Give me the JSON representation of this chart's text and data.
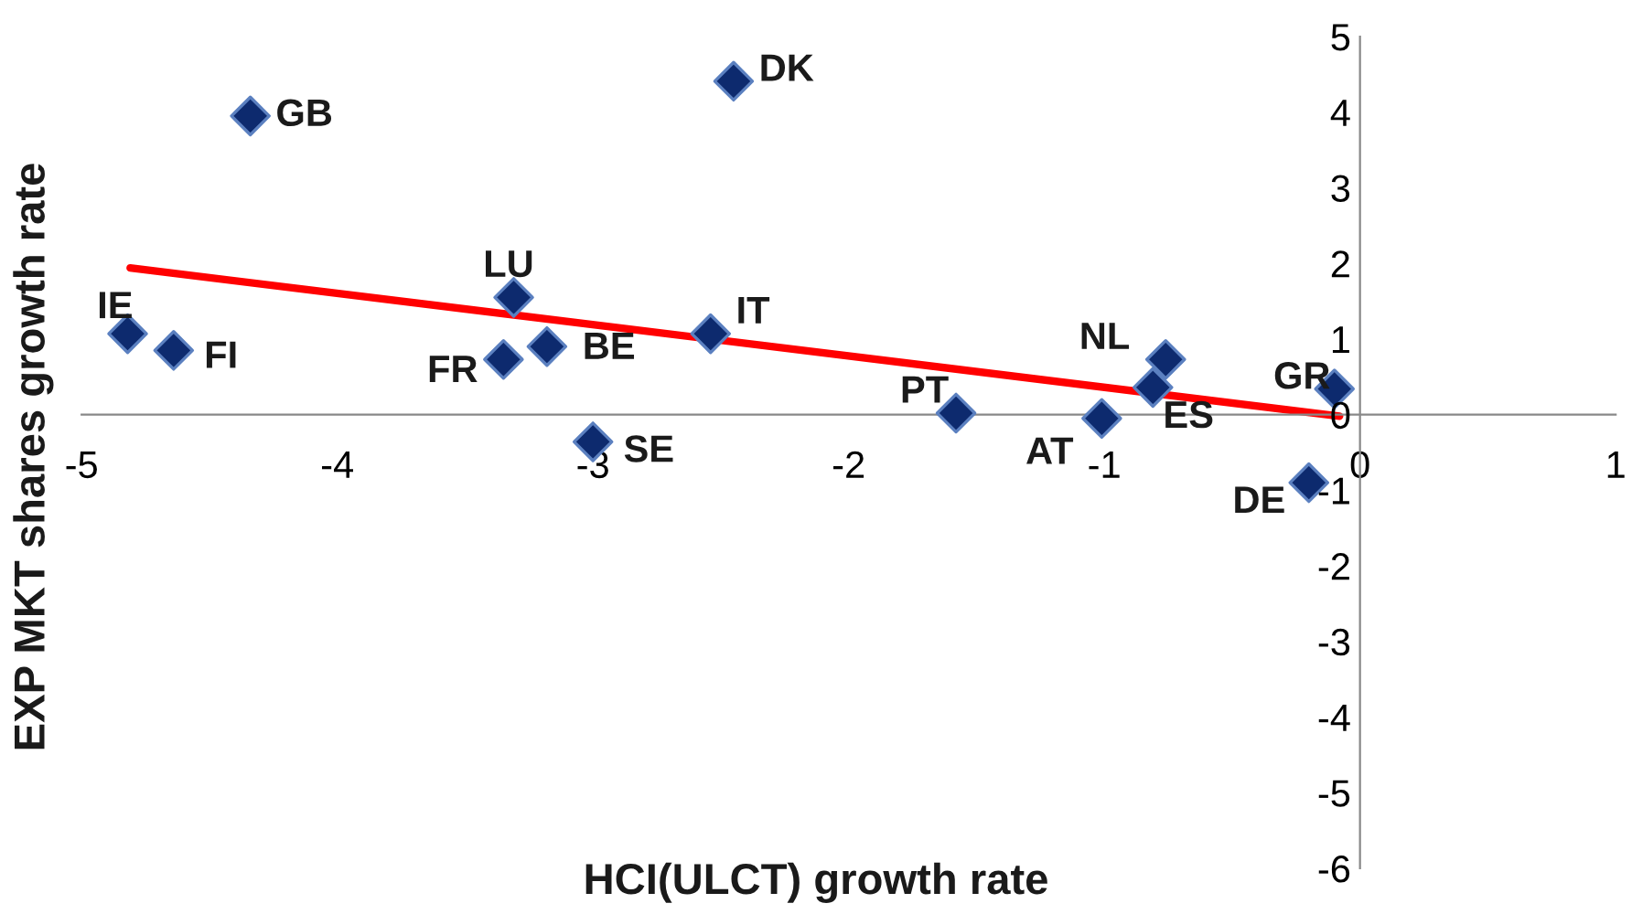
{
  "chart_data": {
    "type": "scatter",
    "xlabel": "HCI(ULCT) growth rate",
    "ylabel": "EXP MKT shares growth rate",
    "xlim": [
      -5,
      1
    ],
    "ylim": [
      -6,
      5
    ],
    "xticks": [
      -5,
      -4,
      -3,
      -2,
      -1,
      0,
      1
    ],
    "yticks": [
      -6,
      -5,
      -4,
      -3,
      -2,
      -1,
      0,
      1,
      2,
      3,
      4,
      5
    ],
    "grid": false,
    "legend": false,
    "series": [
      {
        "color": "#0d2a6e",
        "marker": "diamond",
        "x": [
          -4.34,
          -2.45,
          -4.82,
          -4.64,
          -3.31,
          -3.35,
          -3.18,
          -2.54,
          -3.0,
          -1.58,
          -1.01,
          -0.81,
          -0.76,
          -0.1,
          -0.2
        ],
        "values": [
          3.95,
          4.41,
          1.07,
          0.85,
          1.55,
          0.73,
          0.9,
          1.07,
          -0.36,
          0.02,
          -0.05,
          0.36,
          0.73,
          0.34,
          -0.9
        ]
      },
      {
        "type": "line",
        "color": "#ff0000",
        "marker": "none",
        "line_style": "solid",
        "x": [
          -4.81,
          -0.08
        ],
        "values": [
          1.94,
          -0.02
        ]
      }
    ],
    "annotations": [
      {
        "text": "GB",
        "x": -4.34,
        "y": 3.95
      },
      {
        "text": "DK",
        "x": -2.45,
        "y": 4.41
      },
      {
        "text": "IE",
        "x": -4.82,
        "y": 1.07
      },
      {
        "text": "FI",
        "x": -4.64,
        "y": 0.85
      },
      {
        "text": "LU",
        "x": -3.31,
        "y": 1.55
      },
      {
        "text": "FR",
        "x": -3.35,
        "y": 0.73
      },
      {
        "text": "BE",
        "x": -3.18,
        "y": 0.9
      },
      {
        "text": "IT",
        "x": -2.54,
        "y": 1.07
      },
      {
        "text": "SE",
        "x": -3.0,
        "y": -0.36
      },
      {
        "text": "PT",
        "x": -1.58,
        "y": 0.02
      },
      {
        "text": "AT",
        "x": -1.01,
        "y": -0.05
      },
      {
        "text": "ES",
        "x": -0.81,
        "y": 0.36
      },
      {
        "text": "NL",
        "x": -0.76,
        "y": 0.73
      },
      {
        "text": "GR",
        "x": -0.1,
        "y": 0.34
      },
      {
        "text": "DE",
        "x": -0.2,
        "y": -0.9
      }
    ]
  }
}
